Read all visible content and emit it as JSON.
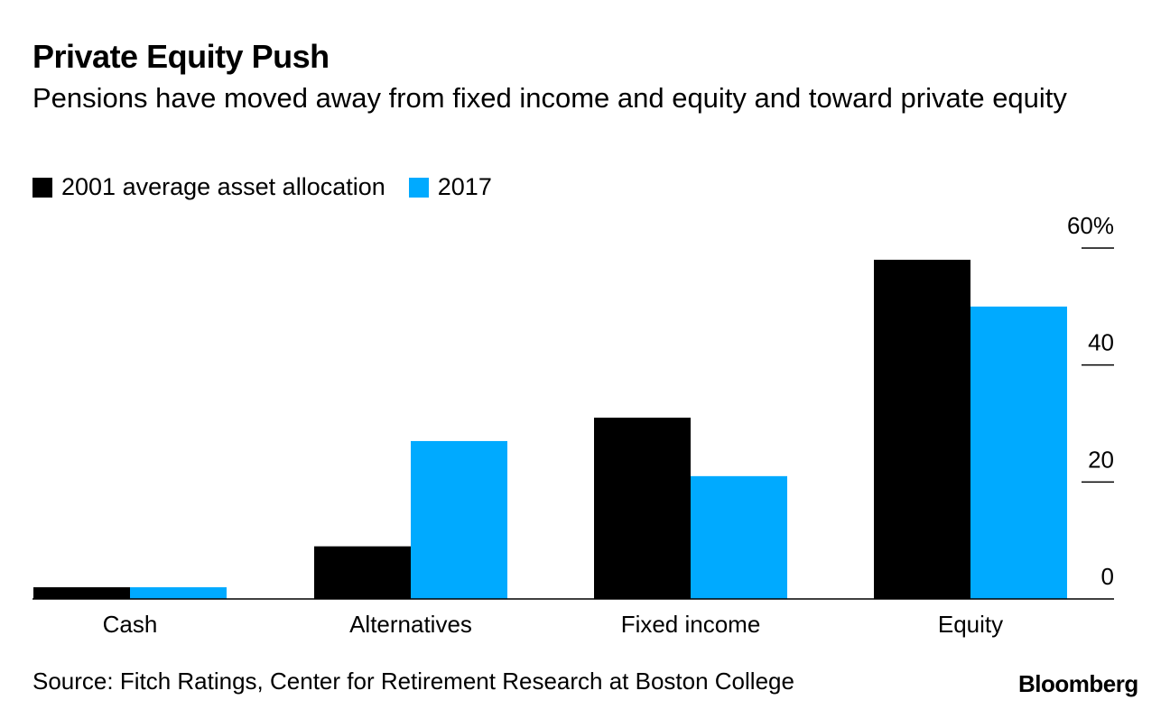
{
  "chart_data": {
    "type": "bar",
    "title": "Private Equity Push",
    "subtitle": "Pensions have moved away from fixed income and equity and toward private equity",
    "categories": [
      "Cash",
      "Alternatives",
      "Fixed income",
      "Equity"
    ],
    "series": [
      {
        "name": "2001 average asset allocation",
        "color": "#000000",
        "values": [
          2,
          9,
          31,
          58
        ]
      },
      {
        "name": "2017",
        "color": "#00aaff",
        "values": [
          2,
          27,
          21,
          50
        ]
      }
    ],
    "yticks": [
      {
        "value": 0,
        "label": "0"
      },
      {
        "value": 20,
        "label": "20"
      },
      {
        "value": 40,
        "label": "40"
      },
      {
        "value": 60,
        "label": "60%"
      }
    ],
    "ylim": [
      0,
      60
    ],
    "grid": false,
    "legend_position": "top-left"
  },
  "footer": {
    "source": "Source: Fitch Ratings, Center for Retirement Research at Boston College",
    "brand": "Bloomberg"
  }
}
